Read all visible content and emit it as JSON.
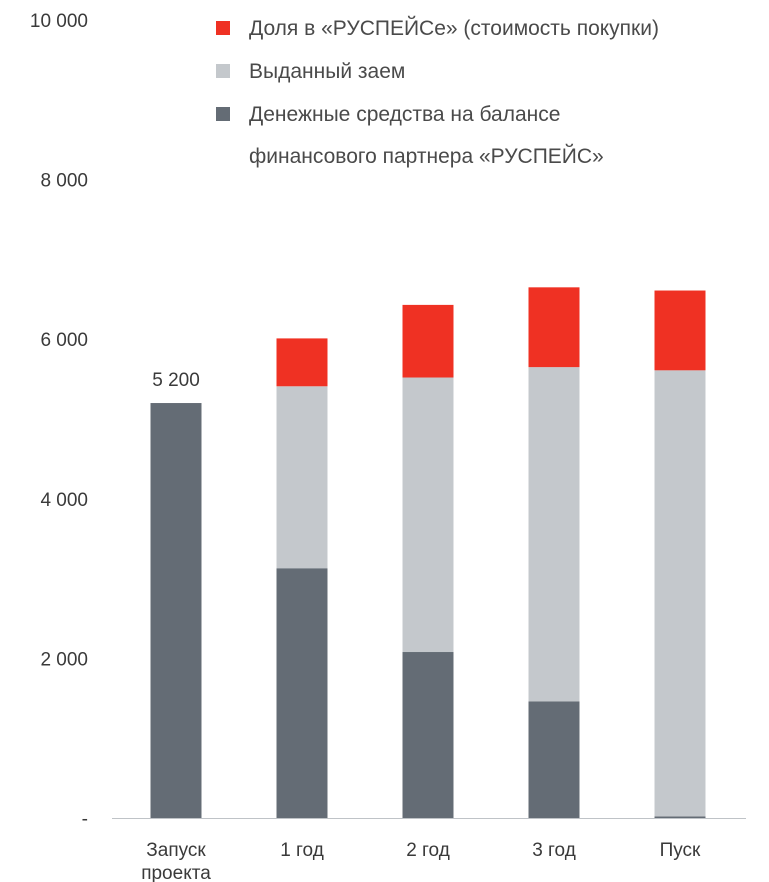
{
  "chart_data": {
    "type": "bar",
    "stacked": true,
    "categories": [
      [
        "Запуск",
        "проекта"
      ],
      [
        "1 год"
      ],
      [
        "2 год"
      ],
      [
        "3 год"
      ],
      [
        "Пуск"
      ]
    ],
    "series": [
      {
        "name": "Денежные средства на балансе финансового партнера «РУСПЕЙС»",
        "legend_lines": [
          "Денежные средства на балансе",
          "финансового партнера «РУСПЕЙС»"
        ],
        "color": "#646c75",
        "values": [
          5200,
          3130,
          2080,
          1460,
          20
        ]
      },
      {
        "name": "Выданный заем",
        "legend_lines": [
          "Выданный заем"
        ],
        "color": "#c4c8cc",
        "values": [
          0,
          2280,
          3440,
          4190,
          5590
        ]
      },
      {
        "name": "Доля в «РУСПЕЙСе» (стоимость покупки)",
        "legend_lines": [
          "Доля в «РУСПЕЙСе» (стоимость покупки)"
        ],
        "color": "#ef3123",
        "values": [
          0,
          600,
          910,
          1000,
          1000
        ]
      }
    ],
    "data_labels": [
      {
        "category_index": 0,
        "text": "5 200"
      }
    ],
    "y_ticks": [
      {
        "value": 0,
        "label": "-"
      },
      {
        "value": 2000,
        "label": "2 000"
      },
      {
        "value": 4000,
        "label": "4 000"
      },
      {
        "value": 6000,
        "label": "6 000"
      },
      {
        "value": 8000,
        "label": "8 000"
      },
      {
        "value": 10000,
        "label": "10 000"
      }
    ],
    "ylim": [
      0,
      10000
    ],
    "grid": false,
    "legend_position": "top",
    "title": "",
    "xlabel": "",
    "ylabel": ""
  }
}
